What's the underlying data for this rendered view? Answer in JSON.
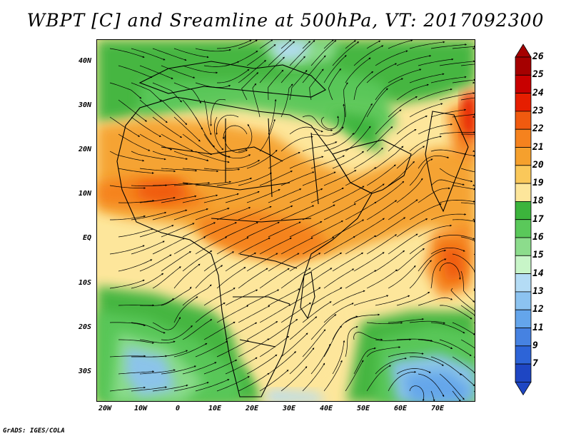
{
  "title": "WBPT [C] and Sreamline at 500hPa, VT: 2017092300",
  "credit": "GrADS: IGES/COLA",
  "map": {
    "lat_labels": [
      "40N",
      "30N",
      "20N",
      "10N",
      "EQ",
      "10S",
      "20S",
      "30S"
    ],
    "lon_labels": [
      "20W",
      "10W",
      "0",
      "10E",
      "20E",
      "30E",
      "40E",
      "50E",
      "60E",
      "70E"
    ]
  },
  "colorbar": {
    "labels": [
      "26",
      "25",
      "24",
      "23",
      "22",
      "21",
      "20",
      "19",
      "18",
      "17",
      "16",
      "15",
      "14",
      "13",
      "12",
      "11",
      "9",
      "7"
    ],
    "colors": [
      "#a50000",
      "#c80000",
      "#e61e00",
      "#f05a0f",
      "#f5821e",
      "#f5a02d",
      "#fac85a",
      "#fde69b",
      "#3cb43c",
      "#5ac85a",
      "#8cdc8c",
      "#c8f5c8",
      "#b4dcf5",
      "#8cc3f0",
      "#64a5eb",
      "#4682e1",
      "#2d64d7",
      "#1e46c3"
    ]
  }
}
